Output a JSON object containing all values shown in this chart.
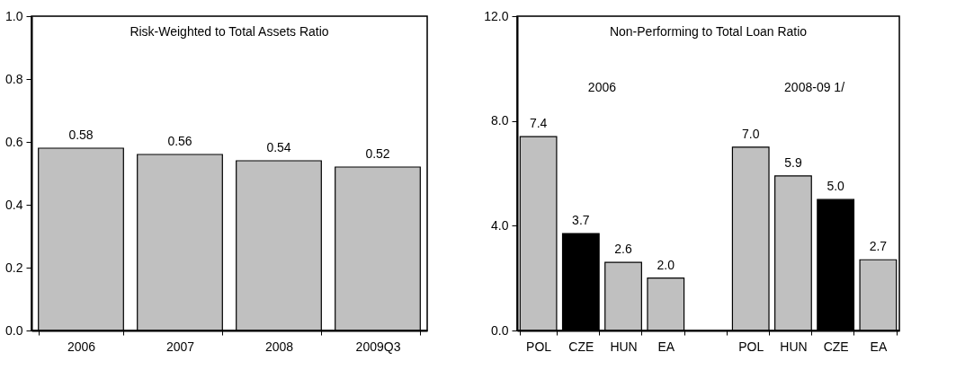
{
  "chart_data": [
    {
      "type": "bar",
      "title": "Risk-Weighted to Total Assets Ratio",
      "categories": [
        "2006",
        "2007",
        "2008",
        "2009Q3"
      ],
      "values": [
        0.58,
        0.56,
        0.54,
        0.52
      ],
      "colors": [
        "#c0c0c0",
        "#c0c0c0",
        "#c0c0c0",
        "#c0c0c0"
      ],
      "ylim": [
        0,
        1.0
      ],
      "yticks": [
        {
          "value": 0,
          "label": "0.0"
        },
        {
          "value": 0.2,
          "label": "0.2"
        },
        {
          "value": 0.4,
          "label": "0.4"
        },
        {
          "value": 0.6,
          "label": "0.6"
        },
        {
          "value": 0.8,
          "label": "0.8"
        },
        {
          "value": 1.0,
          "label": "1.0"
        }
      ],
      "data_labels": true,
      "grid": false
    },
    {
      "type": "bar",
      "title": "Non-Performing to Total Loan Ratio",
      "categories": [
        "POL",
        "CZE",
        "HUN",
        "EA",
        null,
        "POL",
        "HUN",
        "CZE",
        "EA"
      ],
      "values": [
        7.4,
        3.7,
        2.6,
        2.0,
        null,
        7.0,
        5.9,
        5.0,
        2.7
      ],
      "value_labels": [
        "7.4",
        "3.7",
        "2.6",
        "2.0",
        null,
        "7.0",
        "5.9",
        "5.0",
        "2.7"
      ],
      "colors": [
        "#c0c0c0",
        "#000000",
        "#c0c0c0",
        "#c0c0c0",
        null,
        "#c0c0c0",
        "#c0c0c0",
        "#000000",
        "#c0c0c0"
      ],
      "ylim": [
        0,
        12.0
      ],
      "yticks": [
        {
          "value": 0,
          "label": "0.0"
        },
        {
          "value": 4,
          "label": "4.0"
        },
        {
          "value": 8,
          "label": "8.0"
        },
        {
          "value": 12,
          "label": "12.0"
        }
      ],
      "annotations": [
        "2006",
        "2008-09 1/"
      ],
      "grid": false
    }
  ]
}
